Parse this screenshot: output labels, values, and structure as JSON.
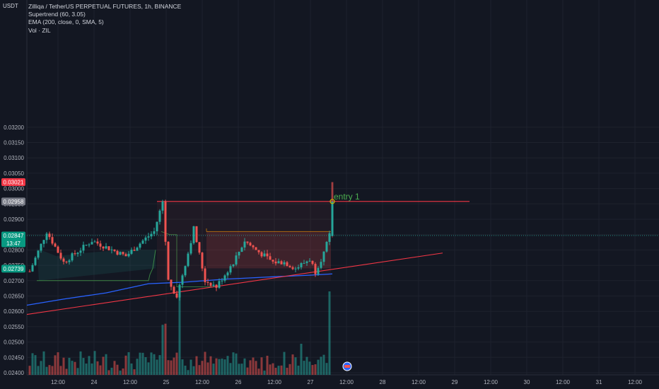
{
  "legend": {
    "symbol": "Zilliqa / TetherUS PERPETUAL FUTURES, 1h, BINANCE",
    "supertrend": "Supertrend (60, 3.05)",
    "ema": "EMA (200, close, 0, SMA, 5)",
    "vol": "Vol · ZIL"
  },
  "axis": {
    "unit": "USDT"
  },
  "price_badges": [
    {
      "text": "0.03021",
      "color": "#f23645"
    },
    {
      "text": "0.02958",
      "color": "#787b86"
    },
    {
      "text": "0.02847",
      "color": "#089981",
      "sub": "13:47"
    },
    {
      "text": "0.02739",
      "color": "#089981"
    }
  ],
  "annotations": {
    "entry_label": "entry 1"
  },
  "colors": {
    "up": "#26a69a",
    "down": "#ef5350",
    "ema": "#2962ff",
    "trendline": "#f23645",
    "supertrend_line": "#4caf50",
    "entry": "#4caf50"
  },
  "chart_data": {
    "type": "candlestick",
    "y_axis": {
      "ticks": [
        "0.03200",
        "0.03150",
        "0.03100",
        "0.03050",
        "0.03000",
        "0.02950",
        "0.02900",
        "0.02850",
        "0.02800",
        "0.02750",
        "0.02700",
        "0.02650",
        "0.02600",
        "0.02550",
        "0.02500",
        "0.02450",
        "0.02400"
      ],
      "range": [
        0.024,
        0.0322
      ]
    },
    "x_axis": {
      "ticks": [
        "12:00",
        "24",
        "12:00",
        "25",
        "12:00",
        "26",
        "12:00",
        "27",
        "12:00",
        "28",
        "12:00",
        "29",
        "12:00",
        "30",
        "12:00",
        "31",
        "12:00"
      ]
    },
    "levels": {
      "entry": 0.02958,
      "resistance": 0.02958
    },
    "candles_summary": {
      "start_price": 0.0273,
      "high": 0.03021,
      "low": 0.0263,
      "last_close": 0.02847
    }
  }
}
